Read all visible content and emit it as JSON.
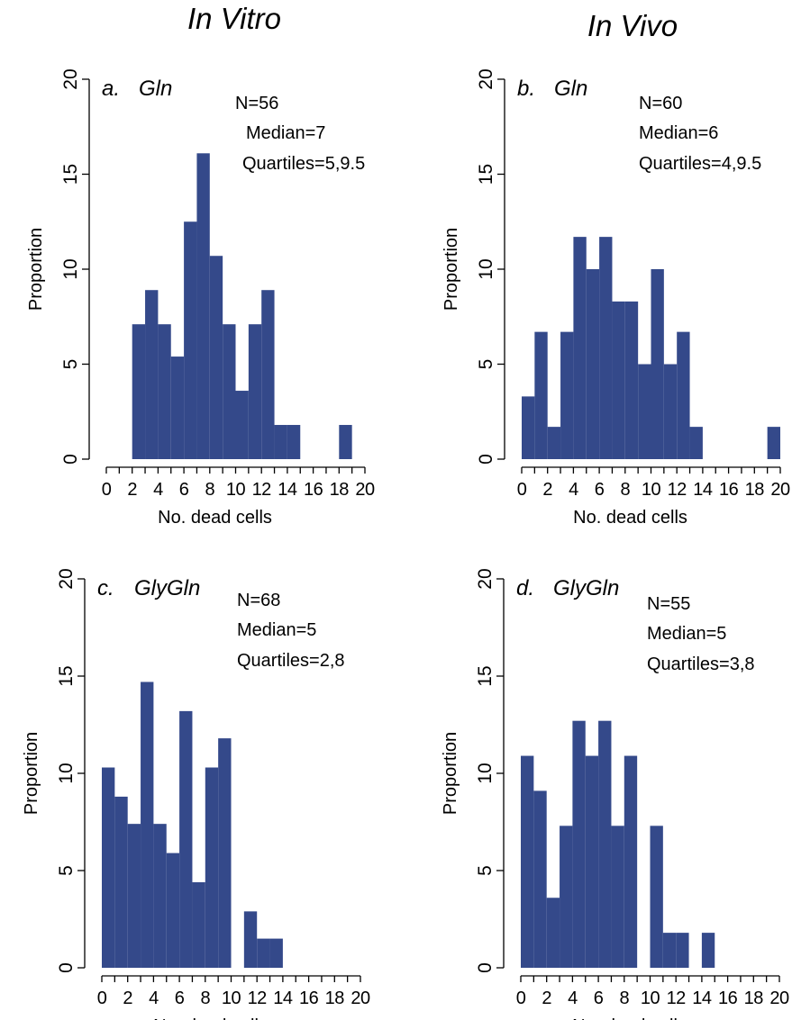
{
  "column_titles": [
    "In Vitro",
    "In Vivo"
  ],
  "bar_color": "#34498a",
  "chart_data": [
    {
      "type": "bar",
      "panel_label": "a.",
      "treatment": "Gln",
      "stats": [
        "N=56",
        "Median=7",
        "Quartiles=5,9.5"
      ],
      "xlabel": "No. dead cells",
      "ylabel": "Proportion",
      "ylim": [
        0,
        20
      ],
      "yticks": [
        "0",
        "5",
        "10",
        "15",
        "20"
      ],
      "xticks": [
        "0",
        "2",
        "4",
        "6",
        "8",
        "10",
        "12",
        "14",
        "16",
        "18",
        "20"
      ],
      "bins": [
        0,
        1,
        2,
        3,
        4,
        5,
        6,
        7,
        8,
        9,
        10,
        11,
        12,
        13,
        14,
        15,
        16,
        17,
        18,
        19
      ],
      "values": [
        0,
        0,
        7.1,
        8.9,
        7.1,
        5.4,
        12.5,
        16.1,
        10.7,
        7.1,
        3.6,
        7.1,
        8.9,
        1.8,
        1.8,
        0,
        0,
        0,
        1.8,
        0
      ]
    },
    {
      "type": "bar",
      "panel_label": "b.",
      "treatment": "Gln",
      "stats": [
        "N=60",
        "Median=6",
        "Quartiles=4,9.5"
      ],
      "xlabel": "No. dead cells",
      "ylabel": "Proportion",
      "ylim": [
        0,
        20
      ],
      "yticks": [
        "0",
        "5",
        "10",
        "15",
        "20"
      ],
      "xticks": [
        "0",
        "2",
        "4",
        "6",
        "8",
        "10",
        "12",
        "14",
        "16",
        "18",
        "20"
      ],
      "bins": [
        0,
        1,
        2,
        3,
        4,
        5,
        6,
        7,
        8,
        9,
        10,
        11,
        12,
        13,
        14,
        15,
        16,
        17,
        18,
        19
      ],
      "values": [
        3.3,
        6.7,
        1.7,
        6.7,
        11.7,
        10.0,
        11.7,
        8.3,
        8.3,
        5.0,
        10.0,
        5.0,
        6.7,
        1.7,
        0,
        0,
        0,
        0,
        0,
        1.7
      ]
    },
    {
      "type": "bar",
      "panel_label": "c.",
      "treatment": "GlyGln",
      "stats": [
        "N=68",
        "Median=5",
        "Quartiles=2,8"
      ],
      "xlabel": "No. dead cells",
      "ylabel": "Proportion",
      "ylim": [
        0,
        20
      ],
      "yticks": [
        "0",
        "5",
        "10",
        "15",
        "20"
      ],
      "xticks": [
        "0",
        "2",
        "4",
        "6",
        "8",
        "10",
        "12",
        "14",
        "16",
        "18",
        "20"
      ],
      "bins": [
        0,
        1,
        2,
        3,
        4,
        5,
        6,
        7,
        8,
        9,
        10,
        11,
        12,
        13,
        14,
        15,
        16,
        17,
        18,
        19
      ],
      "values": [
        10.3,
        8.8,
        7.4,
        14.7,
        7.4,
        5.9,
        13.2,
        4.4,
        10.3,
        11.8,
        0,
        2.9,
        1.5,
        1.5,
        0,
        0,
        0,
        0,
        0,
        0
      ]
    },
    {
      "type": "bar",
      "panel_label": "d.",
      "treatment": "GlyGln",
      "stats": [
        "N=55",
        "Median=5",
        "Quartiles=3,8"
      ],
      "xlabel": "No. dead cells",
      "ylabel": "Proportion",
      "ylim": [
        0,
        20
      ],
      "yticks": [
        "0",
        "5",
        "10",
        "15",
        "20"
      ],
      "xticks": [
        "0",
        "2",
        "4",
        "6",
        "8",
        "10",
        "12",
        "14",
        "16",
        "18",
        "20"
      ],
      "bins": [
        0,
        1,
        2,
        3,
        4,
        5,
        6,
        7,
        8,
        9,
        10,
        11,
        12,
        13,
        14,
        15,
        16,
        17,
        18,
        19
      ],
      "values": [
        10.9,
        9.1,
        3.6,
        7.3,
        12.7,
        10.9,
        12.7,
        7.3,
        10.9,
        0,
        7.3,
        1.8,
        1.8,
        0,
        1.8,
        0,
        0,
        0,
        0,
        0
      ]
    }
  ]
}
